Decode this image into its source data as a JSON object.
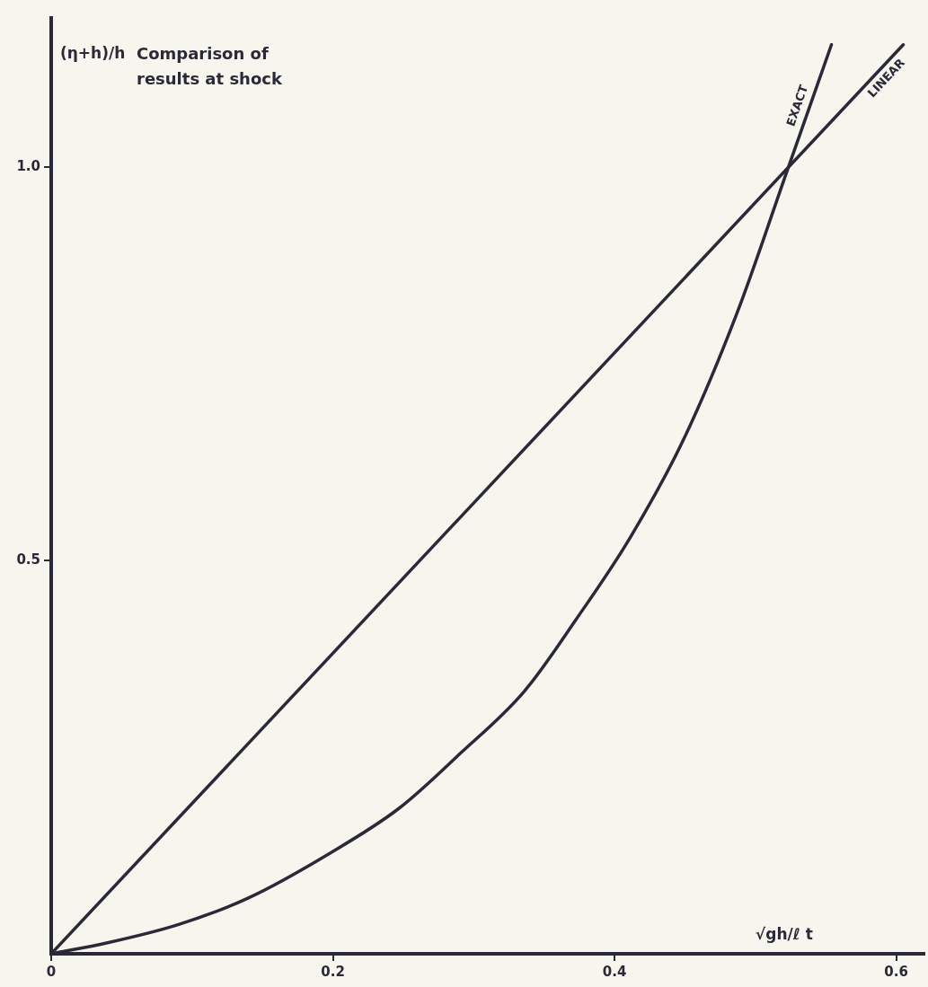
{
  "chart_data": {
    "type": "line",
    "title": "Comparison of results at shock",
    "xlabel": "√gh/ℓ t",
    "ylabel": "(η+h)/h",
    "xlim": [
      0,
      0.62
    ],
    "ylim": [
      0,
      1.19
    ],
    "xticks": [
      0,
      0.2,
      0.4,
      0.6
    ],
    "yticks": [
      0.5,
      {
        "value": 1,
        "label": "1.0"
      }
    ],
    "grid": false,
    "legend": false,
    "marker": "none",
    "line_style": "solid",
    "series": [
      {
        "name": "EXACT",
        "color": "#2b2838",
        "x": [
          0,
          0.04,
          0.09,
          0.14,
          0.198,
          0.247,
          0.29,
          0.336,
          0.373,
          0.411,
          0.449,
          0.487,
          0.523,
          0.554
        ],
        "values": [
          0,
          0.014,
          0.037,
          0.071,
          0.128,
          0.185,
          0.254,
          0.334,
          0.426,
          0.529,
          0.654,
          0.815,
          0.998,
          1.156
        ]
      },
      {
        "name": "LINEAR",
        "color": "#2b2838",
        "x": [
          0,
          0.605
        ],
        "values": [
          0,
          1.156
        ]
      }
    ]
  }
}
